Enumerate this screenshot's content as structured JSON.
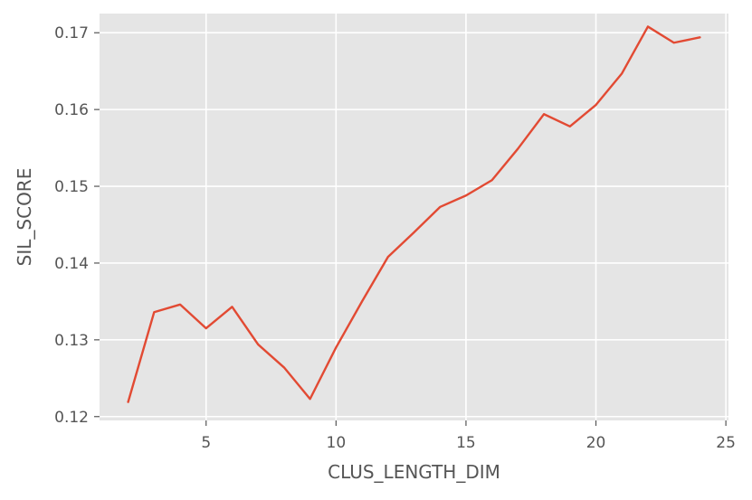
{
  "chart_data": {
    "type": "line",
    "title": "",
    "xlabel": "CLUS_LENGTH_DIM",
    "ylabel": "SIL_SCORE",
    "xlim": [
      0.9,
      25.1
    ],
    "ylim": [
      0.1195,
      0.1725
    ],
    "x_ticks": [
      5,
      10,
      15,
      20,
      25
    ],
    "y_ticks": [
      0.12,
      0.13,
      0.14,
      0.15,
      0.16,
      0.17
    ],
    "x_tick_labels": [
      "5",
      "10",
      "15",
      "20",
      "25"
    ],
    "y_tick_labels": [
      "0.12",
      "0.13",
      "0.14",
      "0.15",
      "0.16",
      "0.17"
    ],
    "grid": true,
    "series": [
      {
        "color": "#E24A33",
        "x": [
          2,
          3,
          4,
          5,
          6,
          7,
          8,
          9,
          10,
          11,
          12,
          13,
          14,
          15,
          16,
          17,
          18,
          19,
          20,
          21,
          22,
          23,
          24
        ],
        "y": [
          0.1219,
          0.1336,
          0.1346,
          0.1315,
          0.1343,
          0.1294,
          0.1264,
          0.1223,
          0.129,
          0.135,
          0.1408,
          0.144,
          0.1473,
          0.1488,
          0.1508,
          0.1549,
          0.1594,
          0.1578,
          0.1606,
          0.1647,
          0.1708,
          0.1687,
          0.1694
        ]
      }
    ]
  },
  "colors": {
    "plot_background": "#E5E5E5",
    "grid": "#FFFFFF",
    "tick_text": "#555555",
    "label_text": "#555555"
  }
}
